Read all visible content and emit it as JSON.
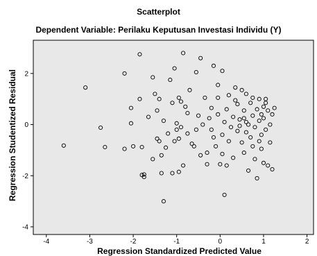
{
  "chart_data": {
    "type": "scatter",
    "title": "Scatterplot",
    "subtitle": "Dependent Variable: Perilaku Keputusan Investasi Individu (Y)",
    "xlabel": "Regression Standardized Predicted Value",
    "ylabel": "Regression Studentized Residual",
    "xlim": [
      -4.3,
      2.15
    ],
    "ylim": [
      -4.3,
      3.3
    ],
    "x_ticks": [
      "-4",
      "-3",
      "-2",
      "-1",
      "0",
      "1",
      "2"
    ],
    "y_ticks": [
      "-4",
      "-2",
      "0",
      "2"
    ],
    "grid": false,
    "background": "#e8e8e8",
    "marker_color": "#000000",
    "points": [
      [
        -3.6,
        -0.82
      ],
      [
        -3.1,
        1.45
      ],
      [
        -2.75,
        -0.12
      ],
      [
        -2.65,
        -0.88
      ],
      [
        -2.2,
        2.0
      ],
      [
        -2.2,
        -0.95
      ],
      [
        -2.05,
        0.65
      ],
      [
        -2.05,
        0.05
      ],
      [
        -1.85,
        2.75
      ],
      [
        -1.8,
        -0.88
      ],
      [
        -1.75,
        -2.05
      ],
      [
        -1.8,
        -1.97
      ],
      [
        -1.85,
        1.0
      ],
      [
        -1.65,
        0.3
      ],
      [
        -1.55,
        1.85
      ],
      [
        -1.55,
        -1.35
      ],
      [
        -1.45,
        -0.55
      ],
      [
        -1.45,
        0.55
      ],
      [
        -1.4,
        1.0
      ],
      [
        -1.35,
        -1.2
      ],
      [
        -1.35,
        -1.9
      ],
      [
        -1.3,
        0.15
      ],
      [
        -1.25,
        -0.9
      ],
      [
        -1.2,
        -0.35
      ],
      [
        -1.15,
        1.75
      ],
      [
        -1.1,
        0.85
      ],
      [
        -1.05,
        2.2
      ],
      [
        -1.05,
        -0.65
      ],
      [
        -1.0,
        0.05
      ],
      [
        -0.95,
        1.05
      ],
      [
        -0.95,
        -1.85
      ],
      [
        -0.9,
        -0.1
      ],
      [
        -0.9,
        0.9
      ],
      [
        -0.85,
        -1.6
      ],
      [
        -0.8,
        0.7
      ],
      [
        -0.75,
        -0.35
      ],
      [
        -0.7,
        1.35
      ],
      [
        -0.65,
        -0.75
      ],
      [
        -0.55,
        2.05
      ],
      [
        -0.5,
        0.35
      ],
      [
        -0.45,
        2.6
      ],
      [
        -0.45,
        -1.2
      ],
      [
        -0.4,
        0.0
      ],
      [
        -0.35,
        1.05
      ],
      [
        -0.3,
        -1.55
      ],
      [
        -0.25,
        0.25
      ],
      [
        -0.2,
        0.65
      ],
      [
        -0.2,
        -0.2
      ],
      [
        -0.15,
        2.3
      ],
      [
        -0.1,
        -0.85
      ],
      [
        -0.05,
        1.05
      ],
      [
        -0.05,
        0.4
      ],
      [
        0.0,
        -1.55
      ],
      [
        0.05,
        2.1
      ],
      [
        0.05,
        -0.4
      ],
      [
        0.1,
        -2.75
      ],
      [
        0.1,
        0.1
      ],
      [
        0.15,
        0.6
      ],
      [
        0.2,
        -0.65
      ],
      [
        0.2,
        1.15
      ],
      [
        0.25,
        -0.1
      ],
      [
        0.3,
        0.3
      ],
      [
        0.3,
        -1.3
      ],
      [
        0.35,
        1.45
      ],
      [
        0.4,
        0.8
      ],
      [
        0.4,
        -0.25
      ],
      [
        0.45,
        0.2
      ],
      [
        0.5,
        -0.7
      ],
      [
        0.5,
        1.35
      ],
      [
        0.55,
        -1.1
      ],
      [
        0.55,
        0.55
      ],
      [
        0.6,
        -0.3
      ],
      [
        0.6,
        1.2
      ],
      [
        0.65,
        0.0
      ],
      [
        0.65,
        -1.8
      ],
      [
        0.7,
        0.85
      ],
      [
        0.7,
        -0.5
      ],
      [
        0.75,
        1.05
      ],
      [
        0.75,
        0.35
      ],
      [
        0.8,
        -1.35
      ],
      [
        0.8,
        -0.1
      ],
      [
        0.85,
        0.6
      ],
      [
        0.85,
        -2.1
      ],
      [
        0.9,
        0.15
      ],
      [
        0.9,
        1.0
      ],
      [
        0.95,
        -0.4
      ],
      [
        0.95,
        -0.95
      ],
      [
        1.0,
        0.25
      ],
      [
        1.0,
        0.7
      ],
      [
        1.0,
        -1.5
      ],
      [
        1.05,
        -0.2
      ],
      [
        1.05,
        1.0
      ],
      [
        1.1,
        0.55
      ],
      [
        1.1,
        -1.6
      ],
      [
        1.15,
        0.0
      ],
      [
        1.15,
        -0.7
      ],
      [
        1.2,
        0.4
      ],
      [
        1.2,
        -1.75
      ],
      [
        1.25,
        0.65
      ],
      [
        0.45,
        -0.05
      ],
      [
        -0.55,
        -0.2
      ],
      [
        -0.3,
        -1.1
      ],
      [
        0.05,
        -1.15
      ],
      [
        0.15,
        -1.6
      ],
      [
        -1.0,
        -0.2
      ],
      [
        -1.1,
        -1.9
      ],
      [
        -0.6,
        -0.85
      ],
      [
        0.35,
        0.95
      ],
      [
        0.9,
        -0.65
      ],
      [
        0.95,
        0.4
      ],
      [
        0.6,
        0.1
      ],
      [
        0.75,
        -0.85
      ],
      [
        -0.05,
        1.55
      ],
      [
        -1.5,
        1.2
      ],
      [
        -0.75,
        0.45
      ],
      [
        -2.0,
        -0.85
      ],
      [
        -1.4,
        -0.65
      ],
      [
        -0.95,
        -0.55
      ],
      [
        -0.15,
        -0.5
      ],
      [
        0.55,
        0.25
      ],
      [
        1.05,
        0.85
      ],
      [
        -0.85,
        2.8
      ],
      [
        -1.3,
        -3.0
      ],
      [
        -1.75,
        -1.95
      ]
    ]
  }
}
